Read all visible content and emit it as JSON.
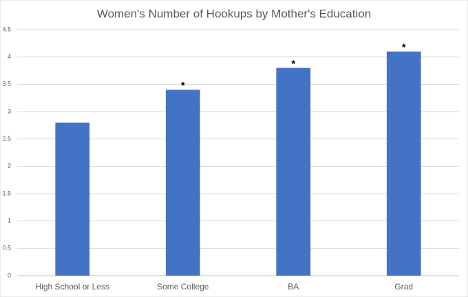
{
  "chart_data": {
    "type": "bar",
    "title": "Women's Number of Hookups by Mother's Education",
    "categories": [
      "High School or Less",
      "Some College",
      "BA",
      "Grad"
    ],
    "values": [
      2.8,
      3.4,
      3.8,
      4.1
    ],
    "significance": [
      null,
      "*",
      "*",
      "*"
    ],
    "color": "#4472c4",
    "ylim": [
      0,
      4.5
    ],
    "yticks": [
      0,
      0.5,
      1,
      1.5,
      2,
      2.5,
      3,
      3.5,
      4,
      4.5
    ],
    "grid": true
  }
}
